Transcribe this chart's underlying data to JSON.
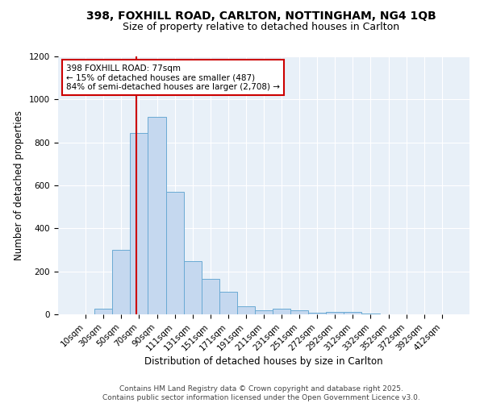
{
  "title1": "398, FOXHILL ROAD, CARLTON, NOTTINGHAM, NG4 1QB",
  "title2": "Size of property relative to detached houses in Carlton",
  "xlabel": "Distribution of detached houses by size in Carlton",
  "ylabel": "Number of detached properties",
  "categories": [
    "10sqm",
    "30sqm",
    "50sqm",
    "70sqm",
    "90sqm",
    "111sqm",
    "131sqm",
    "151sqm",
    "171sqm",
    "191sqm",
    "211sqm",
    "231sqm",
    "251sqm",
    "272sqm",
    "292sqm",
    "312sqm",
    "332sqm",
    "352sqm",
    "372sqm",
    "392sqm",
    "412sqm"
  ],
  "values": [
    0,
    25,
    300,
    845,
    920,
    570,
    248,
    165,
    105,
    38,
    18,
    27,
    18,
    8,
    10,
    10,
    5,
    0,
    0,
    0,
    0
  ],
  "bar_color": "#c5d8ef",
  "bar_edge_color": "#6aaad4",
  "bar_width": 1.0,
  "vline_color": "#cc0000",
  "annotation_text": "398 FOXHILL ROAD: 77sqm\n← 15% of detached houses are smaller (487)\n84% of semi-detached houses are larger (2,708) →",
  "annotation_box_color": "#ffffff",
  "annotation_box_edge": "#cc0000",
  "ylim": [
    0,
    1200
  ],
  "yticks": [
    0,
    200,
    400,
    600,
    800,
    1000,
    1200
  ],
  "bg_color": "#e8f0f8",
  "footer": "Contains HM Land Registry data © Crown copyright and database right 2025.\nContains public sector information licensed under the Open Government Licence v3.0.",
  "title_fontsize": 10,
  "subtitle_fontsize": 9,
  "axis_label_fontsize": 8.5,
  "tick_fontsize": 7.5,
  "footer_fontsize": 6.5,
  "annot_fontsize": 7.5
}
